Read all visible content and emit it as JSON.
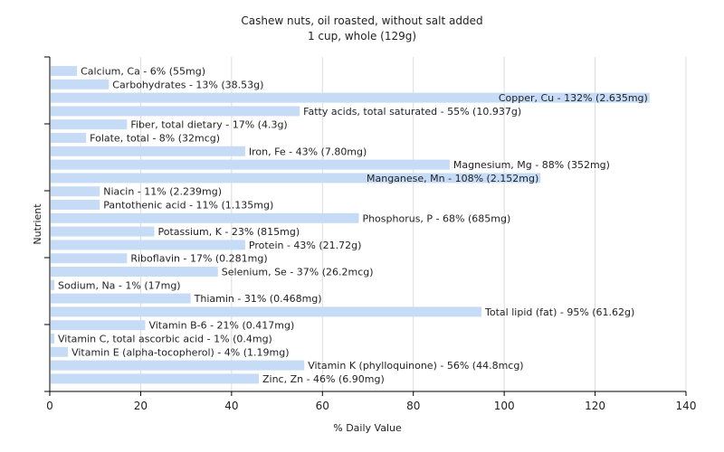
{
  "chart_data": {
    "type": "bar",
    "orientation": "horizontal",
    "title": "Cashew nuts, oil roasted, without salt added",
    "subtitle": "1 cup, whole (129g)",
    "xlabel": "% Daily Value",
    "ylabel": "Nutrient",
    "xlim": [
      0,
      140
    ],
    "xticks": [
      0,
      20,
      40,
      60,
      80,
      100,
      120,
      140
    ],
    "grid": true,
    "bar_color": "#c6dcf6",
    "grid_color": "#dcdcdc",
    "bars": [
      {
        "label": "Calcium, Ca - 6% (55mg)",
        "value": 6
      },
      {
        "label": "Carbohydrates - 13% (38.53g)",
        "value": 13
      },
      {
        "label": "Copper, Cu - 132% (2.635mg)",
        "value": 132
      },
      {
        "label": "Fatty acids, total saturated - 55% (10.937g)",
        "value": 55
      },
      {
        "label": "Fiber, total dietary - 17% (4.3g)",
        "value": 17
      },
      {
        "label": "Folate, total - 8% (32mcg)",
        "value": 8
      },
      {
        "label": "Iron, Fe - 43% (7.80mg)",
        "value": 43
      },
      {
        "label": "Magnesium, Mg - 88% (352mg)",
        "value": 88
      },
      {
        "label": "Manganese, Mn - 108% (2.152mg)",
        "value": 108
      },
      {
        "label": "Niacin - 11% (2.239mg)",
        "value": 11
      },
      {
        "label": "Pantothenic acid - 11% (1.135mg)",
        "value": 11
      },
      {
        "label": "Phosphorus, P - 68% (685mg)",
        "value": 68
      },
      {
        "label": "Potassium, K - 23% (815mg)",
        "value": 23
      },
      {
        "label": "Protein - 43% (21.72g)",
        "value": 43
      },
      {
        "label": "Riboflavin - 17% (0.281mg)",
        "value": 17
      },
      {
        "label": "Selenium, Se - 37% (26.2mcg)",
        "value": 37
      },
      {
        "label": "Sodium, Na - 1% (17mg)",
        "value": 1
      },
      {
        "label": "Thiamin - 31% (0.468mg)",
        "value": 31
      },
      {
        "label": "Total lipid (fat) - 95% (61.62g)",
        "value": 95
      },
      {
        "label": "Vitamin B-6 - 21% (0.417mg)",
        "value": 21
      },
      {
        "label": "Vitamin C, total ascorbic acid - 1% (0.4mg)",
        "value": 1
      },
      {
        "label": "Vitamin E (alpha-tocopherol) - 4% (1.19mg)",
        "value": 4
      },
      {
        "label": "Vitamin K (phylloquinone) - 56% (44.8mcg)",
        "value": 56
      },
      {
        "label": "Zinc, Zn - 46% (6.90mg)",
        "value": 46
      }
    ]
  }
}
